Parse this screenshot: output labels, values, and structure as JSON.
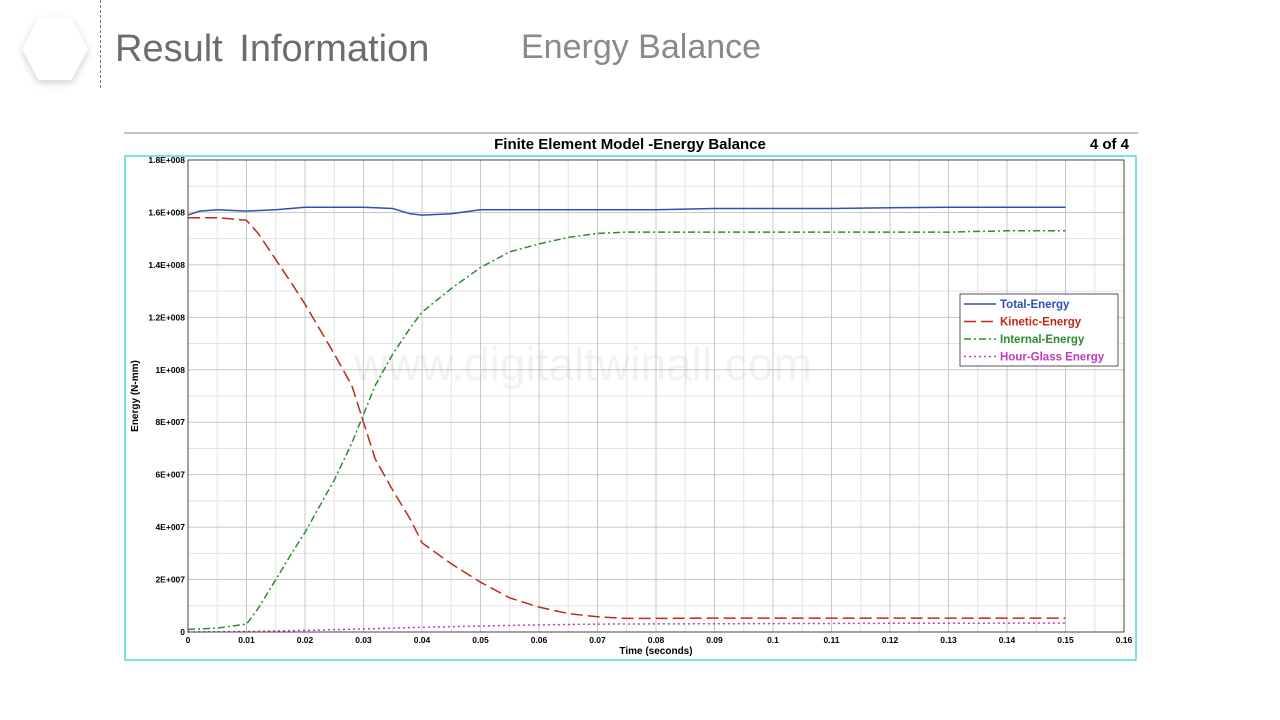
{
  "slide": {
    "title": "Result Information",
    "subtitle": "Energy Balance"
  },
  "watermark": "www.digitaltwinall.com",
  "chart_data": {
    "type": "line",
    "title": "Finite Element Model -Energy Balance",
    "page_indicator": "4 of 4",
    "xlabel": "Time (seconds)",
    "ylabel": "Energy (N-mm)",
    "xlim": [
      0,
      0.16
    ],
    "ylim": [
      0,
      180000000
    ],
    "x_ticks": [
      0,
      0.01,
      0.02,
      0.03,
      0.04,
      0.05,
      0.06,
      0.07,
      0.08,
      0.09,
      0.1,
      0.11,
      0.12,
      0.13,
      0.14,
      0.15,
      0.16
    ],
    "x_tick_labels": [
      "0",
      "0.01",
      "0.02",
      "0.03",
      "0.04",
      "0.05",
      "0.06",
      "0.07",
      "0.08",
      "0.09",
      "0.1",
      "0.11",
      "0.12",
      "0.13",
      "0.14",
      "0.15",
      "0.16"
    ],
    "y_ticks": [
      0,
      20000000,
      40000000,
      60000000,
      80000000,
      100000000,
      120000000,
      140000000,
      160000000,
      180000000
    ],
    "y_tick_labels": [
      "0",
      "2E+007",
      "4E+007",
      "6E+007",
      "8E+007",
      "1E+008",
      "1.2E+008",
      "1.4E+008",
      "1.6E+008",
      "1.8E+008"
    ],
    "grid": true,
    "legend_position": "right",
    "series": [
      {
        "name": "Total-Energy",
        "color": "#2d4fb6",
        "style": "solid",
        "x": [
          0,
          0.002,
          0.005,
          0.01,
          0.015,
          0.02,
          0.025,
          0.03,
          0.035,
          0.038,
          0.04,
          0.045,
          0.05,
          0.06,
          0.07,
          0.08,
          0.09,
          0.1,
          0.11,
          0.12,
          0.13,
          0.14,
          0.15
        ],
        "y": [
          159000000,
          160500000,
          161000000,
          160500000,
          161000000,
          162000000,
          162000000,
          162000000,
          161500000,
          159500000,
          159000000,
          159500000,
          161000000,
          161000000,
          161000000,
          161000000,
          161500000,
          161500000,
          161500000,
          161800000,
          162000000,
          162000000,
          162000000
        ]
      },
      {
        "name": "Kinetic-Energy",
        "color": "#c0281c",
        "style": "dashed",
        "x": [
          0,
          0.005,
          0.01,
          0.012,
          0.015,
          0.018,
          0.02,
          0.025,
          0.028,
          0.03,
          0.032,
          0.035,
          0.038,
          0.04,
          0.045,
          0.05,
          0.055,
          0.06,
          0.065,
          0.07,
          0.075,
          0.08,
          0.09,
          0.1,
          0.11,
          0.12,
          0.13,
          0.14,
          0.15
        ],
        "y": [
          158000000,
          158000000,
          157000000,
          152000000,
          142000000,
          132000000,
          125000000,
          106000000,
          94000000,
          80000000,
          66000000,
          54000000,
          43000000,
          34000000,
          26000000,
          19000000,
          13000000,
          9500000,
          7000000,
          5800000,
          5200000,
          5200000,
          5300000,
          5300000,
          5300000,
          5300000,
          5300000,
          5300000,
          5300000
        ]
      },
      {
        "name": "Internal-Energy",
        "color": "#2f8a2f",
        "style": "dashdot",
        "x": [
          0,
          0.005,
          0.01,
          0.012,
          0.015,
          0.018,
          0.02,
          0.025,
          0.028,
          0.03,
          0.032,
          0.035,
          0.038,
          0.04,
          0.045,
          0.05,
          0.055,
          0.06,
          0.065,
          0.07,
          0.075,
          0.08,
          0.09,
          0.1,
          0.11,
          0.12,
          0.13,
          0.14,
          0.15
        ],
        "y": [
          1000000,
          1500000,
          3000000,
          9000000,
          20000000,
          31000000,
          38000000,
          58000000,
          72000000,
          83000000,
          94000000,
          106000000,
          116000000,
          122000000,
          131000000,
          139000000,
          145000000,
          148000000,
          150500000,
          152000000,
          152500000,
          152500000,
          152500000,
          152500000,
          152500000,
          152500000,
          152500000,
          153000000,
          153000000
        ]
      },
      {
        "name": "Hour-Glass Energy",
        "color": "#c03ac0",
        "style": "dotted",
        "x": [
          0,
          0.01,
          0.02,
          0.03,
          0.04,
          0.05,
          0.06,
          0.07,
          0.08,
          0.1,
          0.12,
          0.15
        ],
        "y": [
          0,
          200000,
          600000,
          1200000,
          1800000,
          2300000,
          2700000,
          3000000,
          3100000,
          3200000,
          3300000,
          3400000
        ]
      }
    ]
  }
}
